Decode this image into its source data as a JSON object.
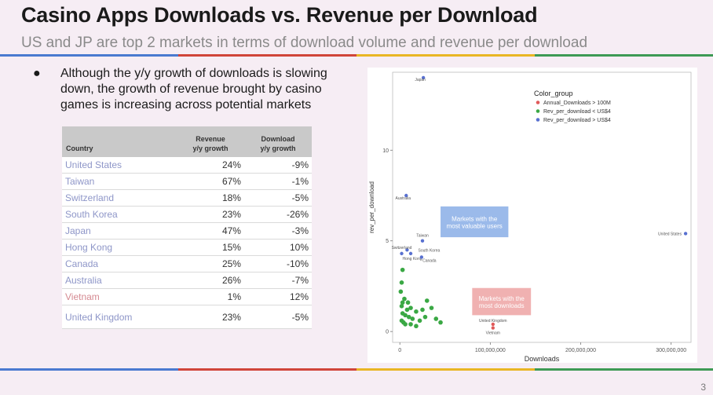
{
  "slide": {
    "title": "Casino Apps Downloads vs. Revenue per Download",
    "subtitle": "US and JP are top 2 markets in terms of download volume and revenue per download",
    "bullet": "Although the y/y growth of downloads is slowing down, the growth of revenue brought by casino games is increasing across potential markets",
    "page_number": "3",
    "accent_colors": [
      "#4a7ad0",
      "#d0453a",
      "#e9b624",
      "#3e9a55"
    ]
  },
  "table": {
    "headers": {
      "country": "Country",
      "revenue_1": "Revenue",
      "revenue_2": "y/y growth",
      "download_1": "Download",
      "download_2": "y/y growth"
    },
    "rows": [
      {
        "country": "United States",
        "revenue": "24%",
        "download": "-9%"
      },
      {
        "country": "Taiwan",
        "revenue": "67%",
        "download": "-1%"
      },
      {
        "country": "Switzerland",
        "revenue": "18%",
        "download": "-5%"
      },
      {
        "country": "South Korea",
        "revenue": "23%",
        "download": "-26%"
      },
      {
        "country": "Japan",
        "revenue": "47%",
        "download": "-3%"
      },
      {
        "country": "Hong Kong",
        "revenue": "15%",
        "download": "10%"
      },
      {
        "country": "Canada",
        "revenue": "25%",
        "download": "-10%"
      },
      {
        "country": "Australia",
        "revenue": "26%",
        "download": "-7%"
      },
      {
        "country": "Vietnam",
        "revenue": "1%",
        "download": "12%"
      },
      {
        "country": "United Kingdom",
        "revenue": "23%",
        "download": "-5%"
      }
    ]
  },
  "chart_data": {
    "type": "scatter",
    "xlabel": "Downloads",
    "ylabel": "rev_per_download",
    "xlim": [
      -8000000,
      322000000
    ],
    "ylim": [
      -0.6,
      14.3
    ],
    "x_ticks": [
      0,
      100000000,
      200000000,
      300000000
    ],
    "x_tick_labels": [
      "0",
      "100,000,000",
      "200,000,000",
      "300,000,000"
    ],
    "y_ticks": [
      0,
      5,
      10
    ],
    "y_tick_labels": [
      "0",
      "5",
      "10"
    ],
    "grid": false,
    "legend": {
      "title": "Color_group",
      "placement": "top-right",
      "entries": [
        {
          "label": "Annual_Downloads > 100M",
          "color": "#e05a5a"
        },
        {
          "label": "Rev_per_download < US$4",
          "color": "#3aa844"
        },
        {
          "label": "Rev_per_download > US$4",
          "color": "#5870d0"
        }
      ]
    },
    "annotations": [
      {
        "text_lines": [
          "Markets with the",
          "most valuable users"
        ],
        "fill": "#8aaee6",
        "text_color": "#ffffff"
      },
      {
        "text_lines": [
          "Markets with the",
          "most downloads"
        ],
        "fill": "#eda3a3",
        "text_color": "#ffffff"
      }
    ],
    "series": [
      {
        "name": "Rev_per_download > US$4",
        "color": "#5870d0",
        "points": [
          {
            "label": "Japan",
            "x": 26000000,
            "y": 14.0
          },
          {
            "label": "United States",
            "x": 316000000,
            "y": 5.4
          },
          {
            "label": "Australia",
            "x": 7000000,
            "y": 7.5
          },
          {
            "label": "Taiwan",
            "x": 25000000,
            "y": 5.0
          },
          {
            "label": "South Korea",
            "x": 8000000,
            "y": 4.5
          },
          {
            "label": "Switzerland",
            "x": 2000000,
            "y": 4.3
          },
          {
            "label": "Hong Kong",
            "x": 12000000,
            "y": 4.3
          },
          {
            "label": "Canada",
            "x": 24000000,
            "y": 4.1
          }
        ]
      },
      {
        "name": "Annual_Downloads > 100M",
        "color": "#e05a5a",
        "points": [
          {
            "label": "United Kingdom",
            "x": 103000000,
            "y": 0.4
          },
          {
            "label": "Vietnam",
            "x": 103000000,
            "y": 0.2
          }
        ]
      },
      {
        "name": "Rev_per_download < US$4",
        "color": "#3aa844",
        "points": [
          {
            "x": 3000000,
            "y": 3.4
          },
          {
            "x": 2000000,
            "y": 2.7
          },
          {
            "x": 1000000,
            "y": 2.2
          },
          {
            "x": 5000000,
            "y": 1.8
          },
          {
            "x": 3000000,
            "y": 1.6
          },
          {
            "x": 2000000,
            "y": 1.4
          },
          {
            "x": 9000000,
            "y": 1.6
          },
          {
            "x": 12000000,
            "y": 1.3
          },
          {
            "x": 18000000,
            "y": 1.1
          },
          {
            "x": 25000000,
            "y": 1.2
          },
          {
            "x": 30000000,
            "y": 1.7
          },
          {
            "x": 35000000,
            "y": 1.3
          },
          {
            "x": 3000000,
            "y": 1.0
          },
          {
            "x": 6000000,
            "y": 0.9
          },
          {
            "x": 10000000,
            "y": 0.8
          },
          {
            "x": 14000000,
            "y": 0.7
          },
          {
            "x": 4000000,
            "y": 0.5
          },
          {
            "x": 2000000,
            "y": 0.6
          },
          {
            "x": 22000000,
            "y": 0.6
          },
          {
            "x": 28000000,
            "y": 0.8
          },
          {
            "x": 40000000,
            "y": 0.7
          },
          {
            "x": 45000000,
            "y": 0.5
          },
          {
            "x": 6000000,
            "y": 0.4
          },
          {
            "x": 12000000,
            "y": 0.4
          },
          {
            "x": 18000000,
            "y": 0.3
          },
          {
            "x": 8000000,
            "y": 1.2
          }
        ]
      }
    ]
  }
}
